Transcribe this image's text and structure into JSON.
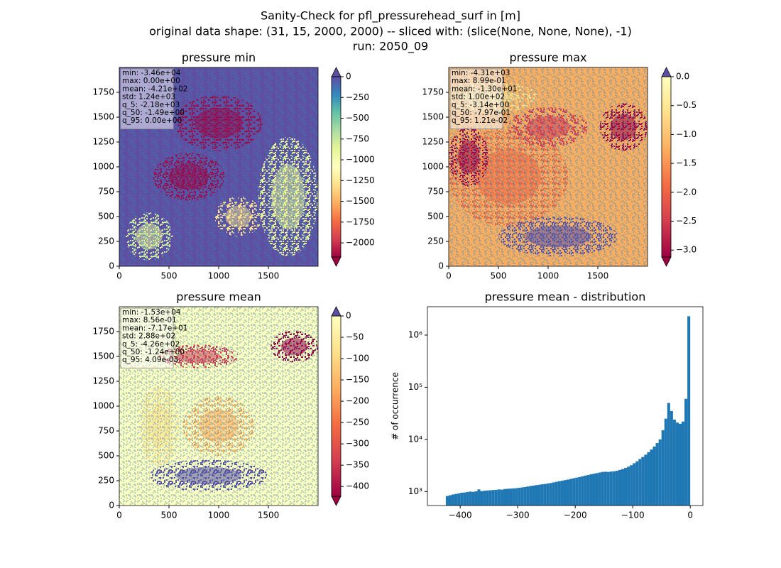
{
  "title": "Sanity-Check for pfl_pressurehead_surf in [m]",
  "subtitle": "original data shape: (31, 15, 2000, 2000) -- sliced with: (slice(None, None, None), -1)",
  "run": "run: 2050_09",
  "chart_data": [
    {
      "type": "heatmap",
      "title": "pressure min",
      "xlim": [
        0,
        2000
      ],
      "ylim": [
        0,
        2000
      ],
      "xticks": [
        0,
        500,
        1000,
        1500
      ],
      "yticks": [
        0,
        250,
        500,
        750,
        1000,
        1250,
        1500,
        1750
      ],
      "stats": [
        "min: -3.46e+04",
        "max: 0.00e+00",
        "mean: -4.21e+02",
        "std: 1.24e+03",
        "q_5: -2.18e+03",
        "q_50: -1.49e+00",
        "q_95: 0.00e+00"
      ],
      "colorbar": {
        "lim": [
          -2170,
          0
        ],
        "colors": [
          "#9e0142",
          "#d53e4f",
          "#f46d43",
          "#fdae61",
          "#fee08b",
          "#ffffbf",
          "#e6f598",
          "#abdda4",
          "#66c2a5",
          "#3288bd",
          "#5e4fa2"
        ],
        "over_color": "#5e4fa2",
        "under_color": "#9e0142",
        "ticks": [
          0,
          {
            "value": -250,
            "label": "−250"
          },
          {
            "value": -500,
            "label": "−500"
          },
          {
            "value": -750,
            "label": "−750"
          },
          {
            "value": -1000,
            "label": "−1000"
          },
          {
            "value": -1250,
            "label": "−1250"
          },
          {
            "value": -1500,
            "label": "−1500"
          },
          {
            "value": -1750,
            "label": "−1750"
          },
          {
            "value": -2000,
            "label": "−2000"
          }
        ]
      }
    },
    {
      "type": "heatmap",
      "title": "pressure max",
      "xlim": [
        0,
        2000
      ],
      "ylim": [
        0,
        2000
      ],
      "xticks": [
        0,
        500,
        1000,
        1500
      ],
      "yticks": [
        0,
        250,
        500,
        750,
        1000,
        1250,
        1500,
        1750
      ],
      "stats": [
        "min: -4.31e+03",
        "max: 8.99e-01",
        "mean: -1.30e+01",
        "std: 1.00e+02",
        "q_5: -3.14e+00",
        "q_50: -7.97e-01",
        "q_95: 1.21e-02"
      ],
      "colorbar": {
        "lim": [
          -3.12,
          0
        ],
        "colors": [
          "#9e0142",
          "#d53e4f",
          "#f46d43",
          "#fdae61",
          "#fee08b",
          "#ffffbf"
        ],
        "over_color": "#5e4fa2",
        "under_color": "#9e0142",
        "ticks": [
          {
            "value": 0,
            "label": "0.0"
          },
          {
            "value": -0.5,
            "label": "−0.5"
          },
          {
            "value": -1,
            "label": "−1.0"
          },
          {
            "value": -1.5,
            "label": "−1.5"
          },
          {
            "value": -2,
            "label": "−2.0"
          },
          {
            "value": -2.5,
            "label": "−2.5"
          },
          {
            "value": -3,
            "label": "−3.0"
          }
        ]
      }
    },
    {
      "type": "heatmap",
      "title": "pressure mean",
      "xlim": [
        0,
        2000
      ],
      "ylim": [
        0,
        2000
      ],
      "xticks": [
        0,
        500,
        1000,
        1500
      ],
      "yticks": [
        0,
        250,
        500,
        750,
        1000,
        1250,
        1500,
        1750
      ],
      "stats": [
        "min: -1.53e+04",
        "max: 8.56e-01",
        "mean: -7.17e+01",
        "std: 2.88e+02",
        "q_5: -4.26e+02",
        "q_50: -1.24e+00",
        "q_95: 4.09e-03"
      ],
      "colorbar": {
        "lim": [
          -423,
          0
        ],
        "colors": [
          "#9e0142",
          "#d53e4f",
          "#f46d43",
          "#fdae61",
          "#fee08b",
          "#ffffbf"
        ],
        "over_color": "#5e4fa2",
        "under_color": "#9e0142",
        "ticks": [
          0,
          {
            "value": -50,
            "label": "−50"
          },
          {
            "value": -100,
            "label": "−100"
          },
          {
            "value": -150,
            "label": "−150"
          },
          {
            "value": -200,
            "label": "−200"
          },
          {
            "value": -250,
            "label": "−250"
          },
          {
            "value": -300,
            "label": "−300"
          },
          {
            "value": -350,
            "label": "−350"
          },
          {
            "value": -400,
            "label": "−400"
          }
        ]
      }
    },
    {
      "type": "histogram",
      "title": "pressure mean - distribution",
      "y_label": "# of occurrence",
      "color": "#1f77b4",
      "log_y": true,
      "xlim": [
        -457,
        22
      ],
      "ylim": [
        540,
        3500000
      ],
      "xticks": [
        {
          "value": -400,
          "label": "−400"
        },
        {
          "value": -300,
          "label": "−300"
        },
        {
          "value": -200,
          "label": "−200"
        },
        {
          "value": -100,
          "label": "−100"
        },
        0
      ],
      "yticks": [
        {
          "value": 1000,
          "label": "10³"
        },
        {
          "value": 10000,
          "label": "10⁴"
        },
        {
          "value": 100000,
          "label": "10⁵"
        },
        {
          "value": 1000000,
          "label": "10⁶"
        }
      ],
      "bins": [
        -425,
        -420,
        -415,
        -410,
        -405,
        -400,
        -395,
        -390,
        -385,
        -380,
        -375,
        -370,
        -365,
        -360,
        -355,
        -350,
        -345,
        -340,
        -335,
        -330,
        -325,
        -320,
        -315,
        -310,
        -305,
        -300,
        -295,
        -290,
        -285,
        -280,
        -275,
        -270,
        -265,
        -260,
        -255,
        -250,
        -245,
        -240,
        -235,
        -230,
        -225,
        -220,
        -215,
        -210,
        -205,
        -200,
        -195,
        -190,
        -185,
        -180,
        -175,
        -170,
        -165,
        -160,
        -155,
        -150,
        -145,
        -140,
        -135,
        -130,
        -125,
        -120,
        -115,
        -110,
        -105,
        -100,
        -95,
        -90,
        -85,
        -80,
        -75,
        -70,
        -65,
        -60,
        -55,
        -50,
        -45,
        -40,
        -35,
        -30,
        -25,
        -20,
        -15,
        -10,
        -5,
        0
      ],
      "values": [
        820,
        850,
        880,
        900,
        920,
        950,
        960,
        980,
        1000,
        990,
        1010,
        1100,
        1020,
        1040,
        1050,
        1060,
        1070,
        1080,
        1100,
        1090,
        1120,
        1130,
        1140,
        1150,
        1160,
        1180,
        1200,
        1220,
        1250,
        1280,
        1300,
        1330,
        1350,
        1380,
        1400,
        1430,
        1460,
        1500,
        1540,
        1580,
        1620,
        1660,
        1700,
        1750,
        1800,
        1850,
        1900,
        1960,
        2020,
        2080,
        2140,
        2200,
        2260,
        2320,
        2380,
        2400,
        2380,
        2420,
        2450,
        2500,
        2600,
        2700,
        2850,
        3000,
        3200,
        3500,
        3800,
        4200,
        4600,
        5100,
        5700,
        6400,
        7300,
        8500,
        10000,
        15000,
        25000,
        50000,
        35000,
        24000,
        21000,
        20000,
        22000,
        60000,
        2300000
      ]
    }
  ]
}
